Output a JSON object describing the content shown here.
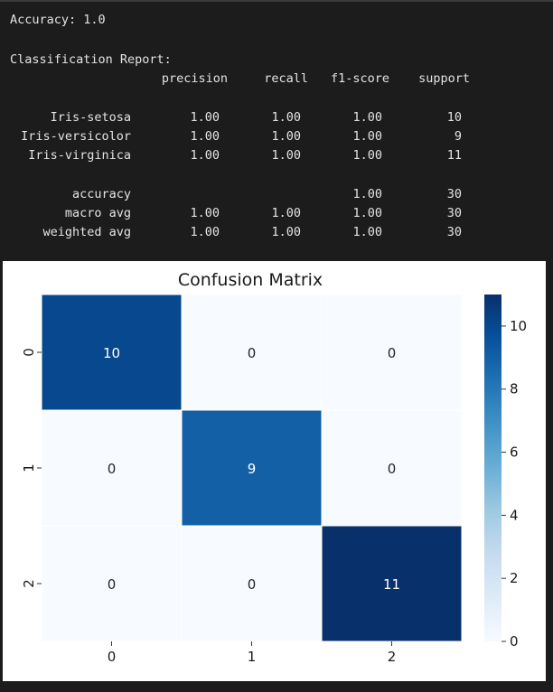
{
  "console": {
    "accuracy_line": "Accuracy: 1.0",
    "report_title": "Classification Report:",
    "header": [
      "precision",
      "recall",
      "f1-score",
      "support"
    ],
    "rows": [
      {
        "label": "Iris-setosa",
        "precision": "1.00",
        "recall": "1.00",
        "f1": "1.00",
        "support": "10"
      },
      {
        "label": "Iris-versicolor",
        "precision": "1.00",
        "recall": "1.00",
        "f1": "1.00",
        "support": "9"
      },
      {
        "label": "Iris-virginica",
        "precision": "1.00",
        "recall": "1.00",
        "f1": "1.00",
        "support": "11"
      }
    ],
    "summary": [
      {
        "label": "accuracy",
        "precision": "",
        "recall": "",
        "f1": "1.00",
        "support": "30"
      },
      {
        "label": "macro avg",
        "precision": "1.00",
        "recall": "1.00",
        "f1": "1.00",
        "support": "30"
      },
      {
        "label": "weighted avg",
        "precision": "1.00",
        "recall": "1.00",
        "f1": "1.00",
        "support": "30"
      }
    ]
  },
  "chart_data": {
    "type": "heatmap",
    "title": "Confusion Matrix",
    "x_categories": [
      "0",
      "1",
      "2"
    ],
    "y_categories": [
      "0",
      "1",
      "2"
    ],
    "values": [
      [
        10,
        0,
        0
      ],
      [
        0,
        9,
        0
      ],
      [
        0,
        0,
        11
      ]
    ],
    "annotations": [
      [
        "10",
        "0",
        "0"
      ],
      [
        "0",
        "9",
        "0"
      ],
      [
        "0",
        "0",
        "11"
      ]
    ],
    "colormap": "Blues",
    "vmin": 0,
    "vmax": 11,
    "colorbar_ticks": [
      0,
      2,
      4,
      6,
      8,
      10
    ],
    "colorbar_tick_labels": [
      "0",
      "2",
      "4",
      "6",
      "8",
      "10"
    ]
  }
}
